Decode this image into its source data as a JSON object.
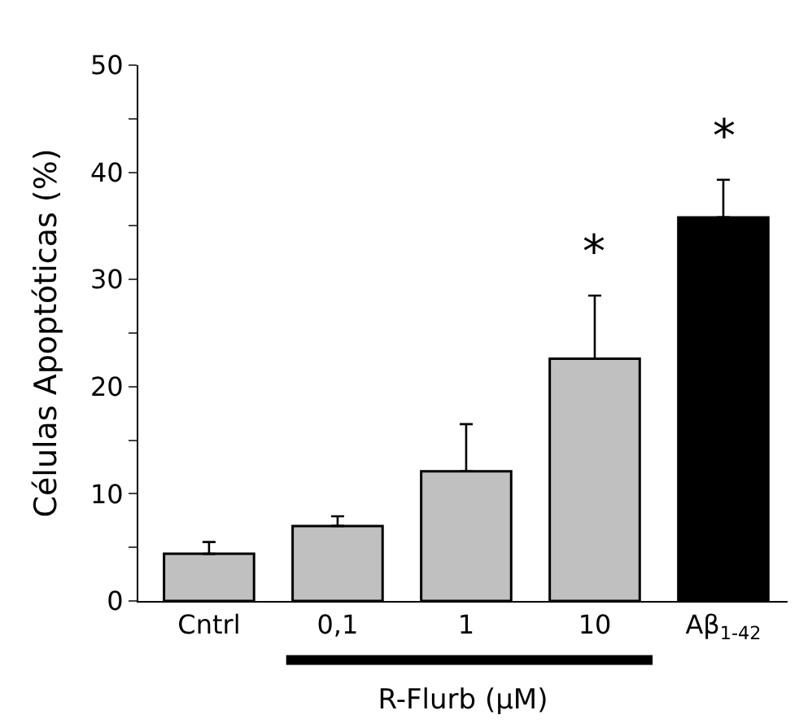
{
  "chart_data": {
    "type": "bar",
    "ylabel": "Células Apoptóticas (%)",
    "xlabel": "R-Flurb (μM)",
    "categories": [
      "Cntrl",
      "0,1",
      "1",
      "10",
      "Aβ$_{1-42}$"
    ],
    "values": [
      4.4,
      7.0,
      12.1,
      22.6,
      35.8
    ],
    "colors": [
      "#c0c0c0",
      "#c0c0c0",
      "#c0c0c0",
      "#c0c0c0",
      "#000000"
    ],
    "errors": [
      [
        4.4,
        5.5
      ],
      [
        7.0,
        7.9
      ],
      [
        12.1,
        16.5
      ],
      [
        22.6,
        28.5
      ],
      [
        35.8,
        39.3
      ]
    ],
    "ylim": [
      0,
      50
    ],
    "yticks": [
      0,
      {
        "value": 5,
        "label": null
      },
      10,
      {
        "value": 15,
        "label": null
      },
      20,
      {
        "value": 25,
        "label": null
      },
      30,
      {
        "value": 35,
        "label": null
      },
      40,
      {
        "value": 45,
        "label": null
      },
      50
    ],
    "annotations": [
      {
        "text": "*",
        "x": "10",
        "y": 28.5
      },
      {
        "text": "*",
        "x": "Aβ$_{1-42}$",
        "y": 39.3
      }
    ]
  }
}
